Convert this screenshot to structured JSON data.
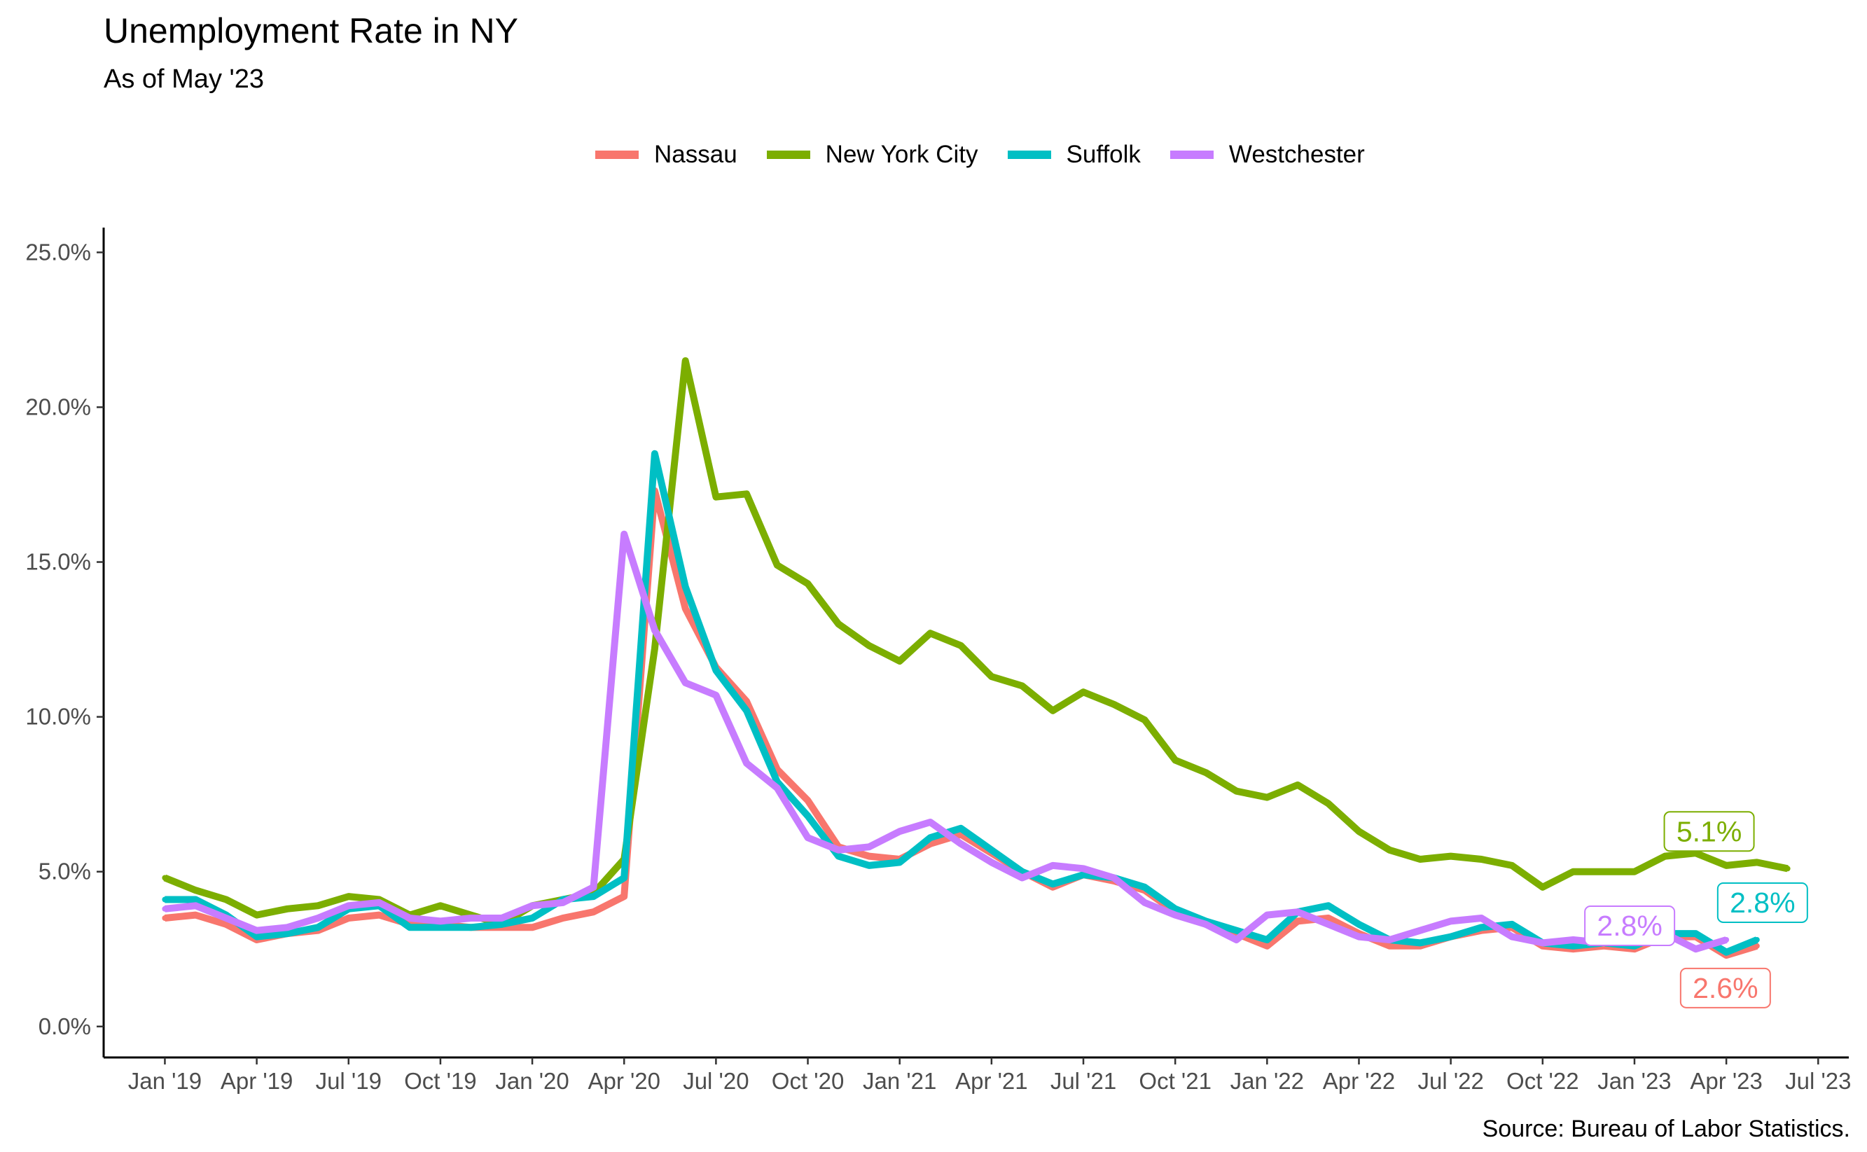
{
  "title": "Unemployment Rate in NY",
  "subtitle": "As of May '23",
  "caption": "Source: Bureau of Labor Statistics.",
  "chart_data": {
    "type": "line",
    "title": "Unemployment Rate in NY",
    "subtitle": "As of May '23",
    "xlabel": "",
    "ylabel": "",
    "x_start": "2019-01",
    "x_end": "2023-05",
    "xlim": [
      "2018-11",
      "2023-08"
    ],
    "ylim": [
      -1,
      25.8
    ],
    "y_ticks": [
      0,
      5,
      10,
      15,
      20,
      25
    ],
    "y_tick_labels": [
      "0.0%",
      "5.0%",
      "10.0%",
      "15.0%",
      "20.0%",
      "25.0%"
    ],
    "x_ticks": [
      "2019-01",
      "2019-04",
      "2019-07",
      "2019-10",
      "2020-01",
      "2020-04",
      "2020-07",
      "2020-10",
      "2021-01",
      "2021-04",
      "2021-07",
      "2021-10",
      "2022-01",
      "2022-04",
      "2022-07",
      "2022-10",
      "2023-01",
      "2023-04",
      "2023-07"
    ],
    "x_tick_labels": [
      "Jan '19",
      "Apr '19",
      "Jul '19",
      "Oct '19",
      "Jan '20",
      "Apr '20",
      "Jul '20",
      "Oct '20",
      "Jan '21",
      "Apr '21",
      "Jul '21",
      "Oct '21",
      "Jan '22",
      "Apr '22",
      "Jul '22",
      "Oct '22",
      "Jan '23",
      "Apr '23",
      "Jul '23"
    ],
    "grid": false,
    "legend_position": "top",
    "series": [
      {
        "name": "Nassau",
        "color": "#F8766D",
        "end_label": "2.6%",
        "values": [
          3.5,
          3.6,
          3.3,
          2.8,
          3.0,
          3.1,
          3.5,
          3.6,
          3.3,
          3.3,
          3.2,
          3.2,
          3.2,
          3.5,
          3.7,
          4.2,
          17.3,
          13.5,
          11.6,
          10.5,
          8.3,
          7.3,
          5.8,
          5.5,
          5.4,
          5.9,
          6.2,
          5.6,
          5.0,
          4.5,
          4.9,
          4.7,
          4.4,
          3.7,
          3.3,
          3.0,
          2.6,
          3.4,
          3.5,
          3.0,
          2.6,
          2.6,
          2.9,
          3.1,
          3.2,
          2.6,
          2.5,
          2.6,
          2.5,
          2.9,
          2.9,
          2.3,
          2.6
        ]
      },
      {
        "name": "New York City",
        "color": "#7CAE00",
        "end_label": "5.1%",
        "values": [
          4.8,
          4.4,
          4.1,
          3.6,
          3.8,
          3.9,
          4.2,
          4.1,
          3.6,
          3.9,
          3.6,
          3.3,
          3.9,
          4.1,
          4.3,
          5.4,
          12.2,
          21.5,
          17.1,
          17.2,
          14.9,
          14.3,
          13.0,
          12.3,
          11.8,
          12.7,
          12.3,
          11.3,
          11.0,
          10.2,
          10.8,
          10.4,
          9.9,
          8.6,
          8.2,
          7.6,
          7.4,
          7.8,
          7.2,
          6.3,
          5.7,
          5.4,
          5.5,
          5.4,
          5.2,
          4.5,
          5.0,
          5.0,
          5.0,
          5.5,
          5.6,
          5.2,
          5.3,
          5.1
        ]
      },
      {
        "name": "Suffolk",
        "color": "#00BFC4",
        "end_label": "2.8%",
        "values": [
          4.1,
          4.1,
          3.6,
          2.9,
          3.0,
          3.2,
          3.8,
          3.9,
          3.2,
          3.2,
          3.2,
          3.3,
          3.5,
          4.1,
          4.2,
          4.8,
          18.5,
          14.2,
          11.5,
          10.2,
          7.9,
          6.8,
          5.5,
          5.2,
          5.3,
          6.1,
          6.4,
          5.7,
          5.0,
          4.6,
          4.9,
          4.8,
          4.5,
          3.8,
          3.4,
          3.1,
          2.8,
          3.7,
          3.9,
          3.3,
          2.8,
          2.7,
          2.9,
          3.2,
          3.3,
          2.7,
          2.6,
          2.7,
          2.6,
          3.0,
          3.0,
          2.4,
          2.8
        ]
      },
      {
        "name": "Westchester",
        "color": "#C77CFF",
        "end_label": "2.8%",
        "values": [
          3.8,
          3.9,
          3.5,
          3.1,
          3.2,
          3.5,
          3.9,
          4.0,
          3.5,
          3.4,
          3.5,
          3.5,
          3.9,
          4.0,
          4.5,
          15.9,
          12.8,
          11.1,
          10.7,
          8.5,
          7.7,
          6.1,
          5.7,
          5.8,
          6.3,
          6.6,
          5.9,
          5.3,
          4.8,
          5.2,
          5.1,
          4.8,
          4.0,
          3.6,
          3.3,
          2.8,
          3.6,
          3.7,
          3.3,
          2.9,
          2.8,
          3.1,
          3.4,
          3.5,
          2.9,
          2.7,
          2.8,
          2.7,
          3.1,
          3.0,
          2.5,
          2.8
        ]
      }
    ]
  }
}
